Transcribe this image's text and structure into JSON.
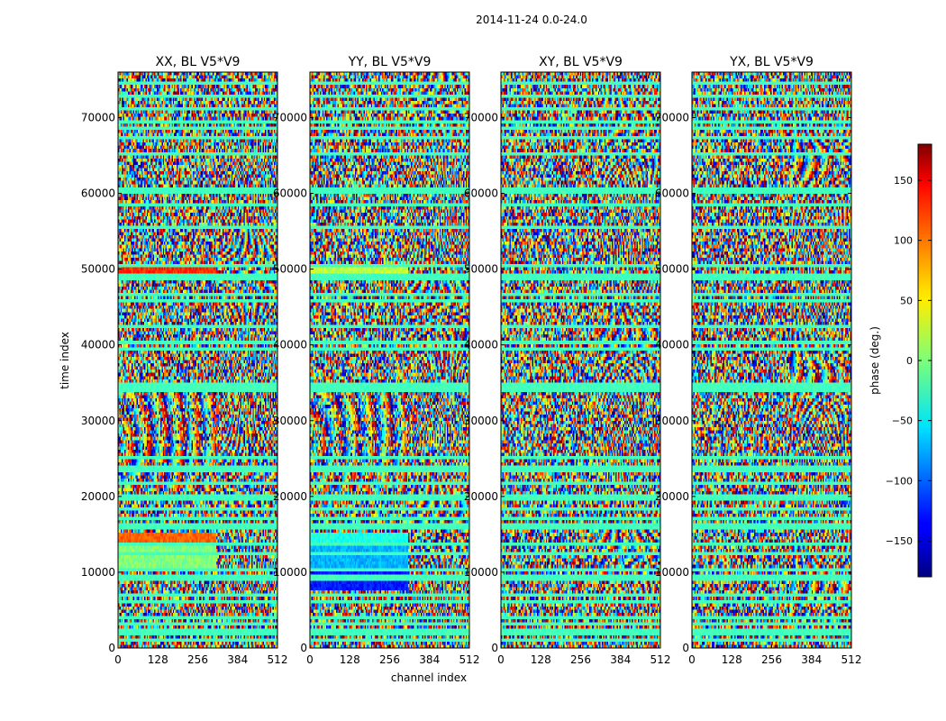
{
  "chart_data": {
    "type": "heatmap",
    "title": "2014-11-24 0.0-24.0",
    "xlabel": "channel index",
    "ylabel": "time index",
    "xlim": [
      0,
      512
    ],
    "ylim": [
      0,
      76000
    ],
    "x_ticks": [
      "0",
      "128",
      "256",
      "384",
      "512"
    ],
    "y_ticks": [
      "0",
      "10000",
      "20000",
      "30000",
      "40000",
      "50000",
      "60000",
      "70000"
    ],
    "x_tick_values": [
      0,
      128,
      256,
      384,
      512
    ],
    "y_tick_values": [
      0,
      10000,
      20000,
      30000,
      40000,
      50000,
      60000,
      70000
    ],
    "panels": [
      {
        "name": "XX, BL V5*V9",
        "pol": "XX"
      },
      {
        "name": "YY, BL V5*V9",
        "pol": "YY"
      },
      {
        "name": "XY, BL V5*V9",
        "pol": "XY"
      },
      {
        "name": "YX, BL V5*V9",
        "pol": "YX"
      }
    ],
    "colorbar": {
      "label": "phase (deg.)",
      "range": [
        -180,
        180
      ],
      "ticks": [
        "150",
        "100",
        "50",
        "0",
        "−50",
        "−100",
        "−150"
      ],
      "tick_values": [
        150,
        100,
        50,
        0,
        -50,
        -100,
        -150
      ],
      "colormap": "jet"
    }
  }
}
